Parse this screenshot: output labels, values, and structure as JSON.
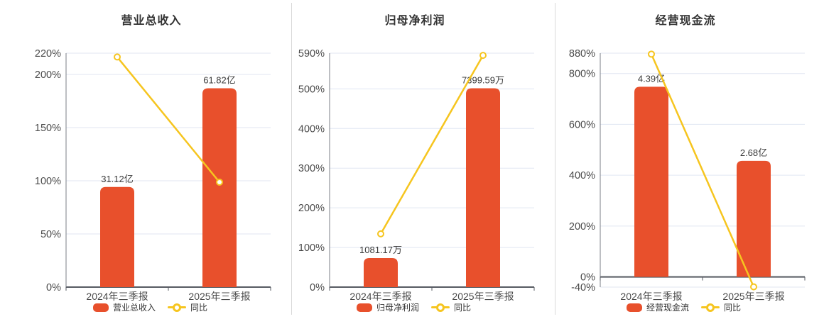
{
  "colors": {
    "background": "#ffffff",
    "bar": "#e8502c",
    "line": "#f6c51f",
    "grid": "#e0e6f2",
    "axis": "#7b7f87",
    "zero_axis": "#565a62",
    "tick_label": "#4a4a4a",
    "data_label": "#3b3b3b",
    "title": "#333333",
    "divider": "#d9d9d9",
    "marker_fill": "#ffffff"
  },
  "chart_data": [
    {
      "type": "bar",
      "title": "营业总收入",
      "categories": [
        "2024年三季报",
        "2025年三季报"
      ],
      "bar_series": {
        "name": "营业总收入",
        "values": [
          31.12,
          61.82
        ],
        "unit": "亿",
        "labels": [
          "31.12亿",
          "61.82亿"
        ]
      },
      "line_series": {
        "name": "同比",
        "unit": "%",
        "values": [
          216.4,
          98.65
        ]
      },
      "y_axis": {
        "min": 0,
        "max": 220,
        "ticks": [
          0,
          50,
          100,
          150,
          200,
          220
        ],
        "tick_suffix": "%"
      },
      "legend_position": "bottom",
      "grid": true
    },
    {
      "type": "bar",
      "title": "归母净利润",
      "categories": [
        "2024年三季报",
        "2025年三季报"
      ],
      "bar_series": {
        "name": "归母净利润",
        "values": [
          1081.17,
          7399.59
        ],
        "unit": "万",
        "labels": [
          "1081.17万",
          "7399.59万"
        ]
      },
      "line_series": {
        "name": "同比",
        "unit": "%",
        "values": [
          134.3,
          584.38
        ]
      },
      "y_axis": {
        "min": 0,
        "max": 590,
        "ticks": [
          0,
          100,
          200,
          300,
          400,
          500,
          590
        ],
        "tick_suffix": "%"
      },
      "legend_position": "bottom",
      "grid": true
    },
    {
      "type": "bar",
      "title": "经营现金流",
      "categories": [
        "2024年三季报",
        "2025年三季报"
      ],
      "bar_series": {
        "name": "经营现金流",
        "values": [
          4.39,
          2.68
        ],
        "unit": "亿",
        "labels": [
          "4.39亿",
          "2.68亿"
        ]
      },
      "line_series": {
        "name": "同比",
        "unit": "%",
        "values": [
          876.3,
          -38.95
        ]
      },
      "y_axis": {
        "min": -40,
        "max": 880,
        "ticks": [
          -40,
          0,
          200,
          400,
          600,
          800,
          880
        ],
        "tick_suffix": "%"
      },
      "legend_position": "bottom",
      "grid": true
    }
  ]
}
